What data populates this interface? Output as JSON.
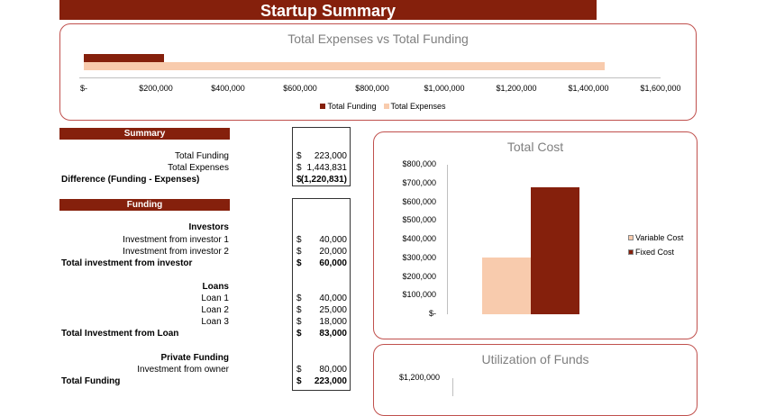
{
  "header": {
    "title": "Startup Summary"
  },
  "summary": {
    "heading": "Summary",
    "rows": [
      {
        "label": "Total Funding",
        "currency": "$",
        "value": "223,000",
        "bold": false
      },
      {
        "label": "Total Expenses",
        "currency": "$",
        "value": "1,443,831",
        "bold": false
      },
      {
        "label": "Difference (Funding - Expenses)",
        "currency": "$",
        "value": "(1,220,831)",
        "bold": true
      }
    ]
  },
  "funding": {
    "heading": "Funding",
    "rows": [
      {
        "label": "Investors",
        "type": "subhead"
      },
      {
        "label": "Investment from investor 1",
        "currency": "$",
        "value": "40,000"
      },
      {
        "label": "Investment from investor 2",
        "currency": "$",
        "value": "20,000"
      },
      {
        "label": "Total investment from investor",
        "currency": "$",
        "value": "60,000",
        "type": "total"
      },
      {
        "label": "Loans",
        "type": "subhead"
      },
      {
        "label": "Loan 1",
        "currency": "$",
        "value": "40,000"
      },
      {
        "label": "Loan 2",
        "currency": "$",
        "value": "25,000"
      },
      {
        "label": "Loan 3",
        "currency": "$",
        "value": "18,000"
      },
      {
        "label": "Total Investment from Loan",
        "currency": "$",
        "value": "83,000",
        "type": "total"
      },
      {
        "label": "Private Funding",
        "type": "subhead"
      },
      {
        "label": "Investment from owner",
        "currency": "$",
        "value": "80,000"
      },
      {
        "label": "Total Funding",
        "currency": "$",
        "value": "223,000",
        "type": "total"
      }
    ]
  },
  "chart_data": [
    {
      "type": "bar",
      "orientation": "horizontal",
      "title": "Total Expenses vs Total Funding",
      "series": [
        {
          "name": "Total Funding",
          "value": 223000,
          "color": "#85200c"
        },
        {
          "name": "Total Expenses",
          "value": 1443831,
          "color": "#f8cbad"
        }
      ],
      "xlim": [
        0,
        1600000
      ],
      "ticks": [
        "$-",
        "$200,000",
        "$400,000",
        "$600,000",
        "$800,000",
        "$1,000,000",
        "$1,200,000",
        "$1,400,000",
        "$1,600,000"
      ],
      "legend": "bottom"
    },
    {
      "type": "bar",
      "title": "Total Cost",
      "series": [
        {
          "name": "Variable Cost",
          "value": 305000,
          "color": "#f8cbad"
        },
        {
          "name": "Fixed Cost",
          "value": 680000,
          "color": "#85200c"
        }
      ],
      "ylim": [
        0,
        800000
      ],
      "ticks": [
        "$800,000",
        "$700,000",
        "$600,000",
        "$500,000",
        "$400,000",
        "$300,000",
        "$200,000",
        "$100,000",
        "$-"
      ],
      "legend": "right"
    },
    {
      "type": "bar",
      "title": "Utilization of Funds",
      "ticks": [
        "$1,200,000"
      ]
    }
  ]
}
